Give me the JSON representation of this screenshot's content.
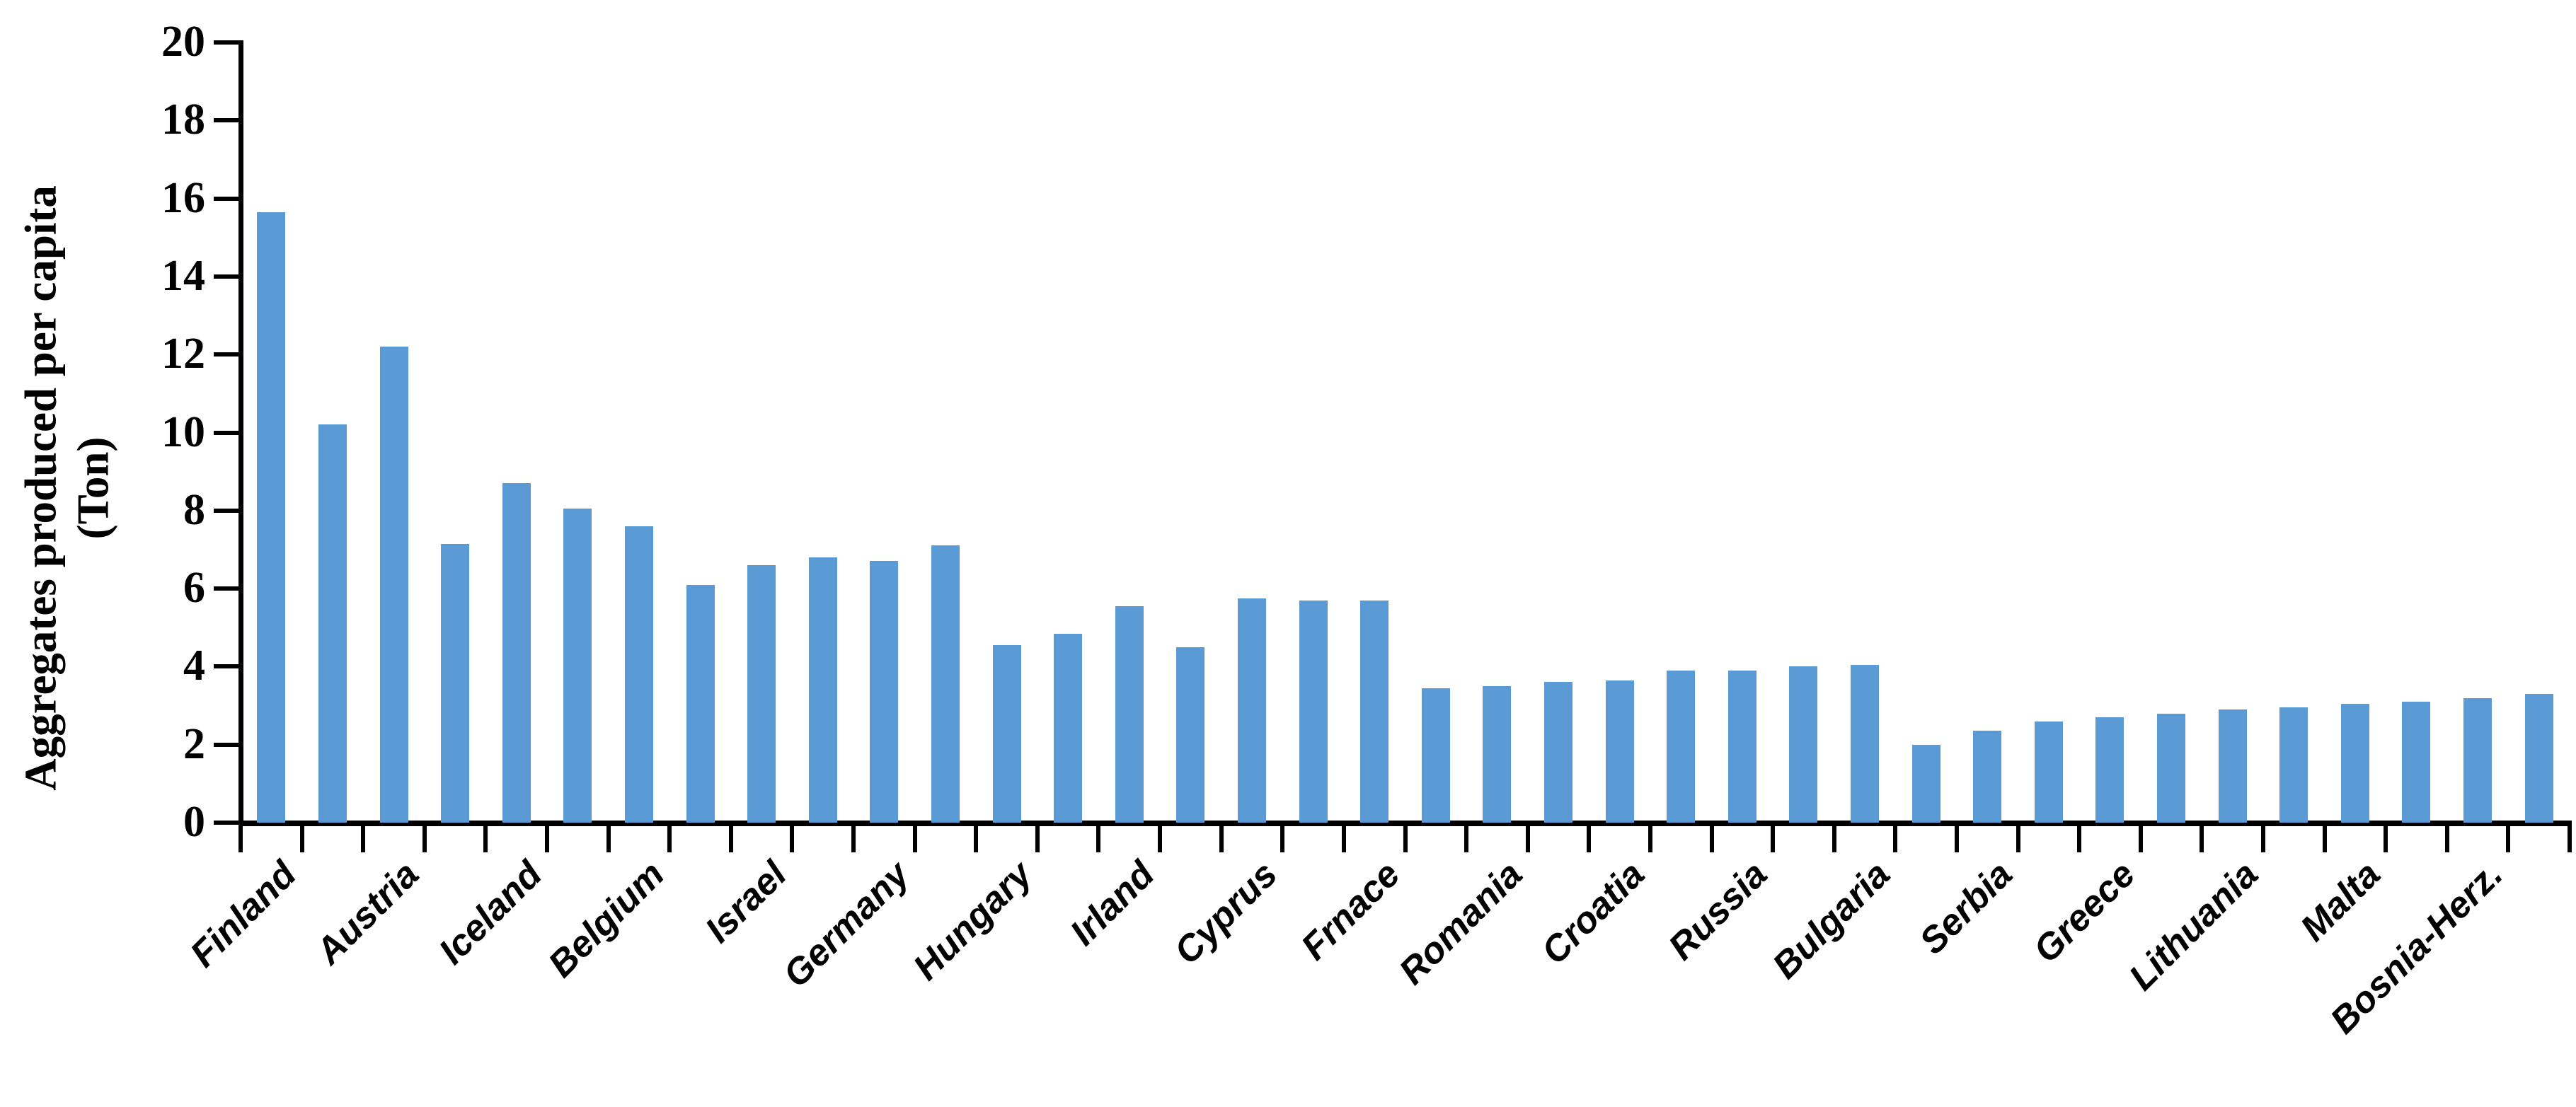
{
  "chart_data": {
    "type": "bar",
    "title": "",
    "ylabel_line1": "Aggregates produced per capita",
    "ylabel_line2": "(Ton)",
    "xlabel": "",
    "ylim": [
      0,
      20
    ],
    "yticks": [
      0,
      2,
      4,
      6,
      8,
      10,
      12,
      14,
      16,
      18,
      20
    ],
    "grid": false,
    "legend": false,
    "bar_color": "#5B9BD5",
    "axis_color": "#000000",
    "x_label_every": 2,
    "x_tick_labels": [
      "Finland",
      "Austria",
      "Iceland",
      "Belgium",
      "Israel",
      "Germany",
      "Hungary",
      "Irland",
      "Cyprus",
      "Frnace",
      "Romania",
      "Croatia",
      "Russia",
      "Bulgaria",
      "Serbia",
      "Greece",
      "Lithuania",
      "Malta",
      "Bosnia-Herz."
    ],
    "values": [
      15.65,
      10.2,
      12.2,
      7.15,
      8.7,
      8.05,
      7.6,
      6.1,
      6.6,
      6.8,
      6.7,
      7.1,
      4.55,
      4.85,
      5.55,
      4.5,
      5.75,
      5.7,
      5.7,
      3.45,
      3.5,
      3.6,
      3.65,
      3.9,
      3.9,
      4.0,
      4.05,
      2.0,
      2.35,
      2.6,
      2.7,
      2.8,
      2.9,
      2.95,
      3.05,
      3.1,
      3.2,
      3.3
    ]
  }
}
